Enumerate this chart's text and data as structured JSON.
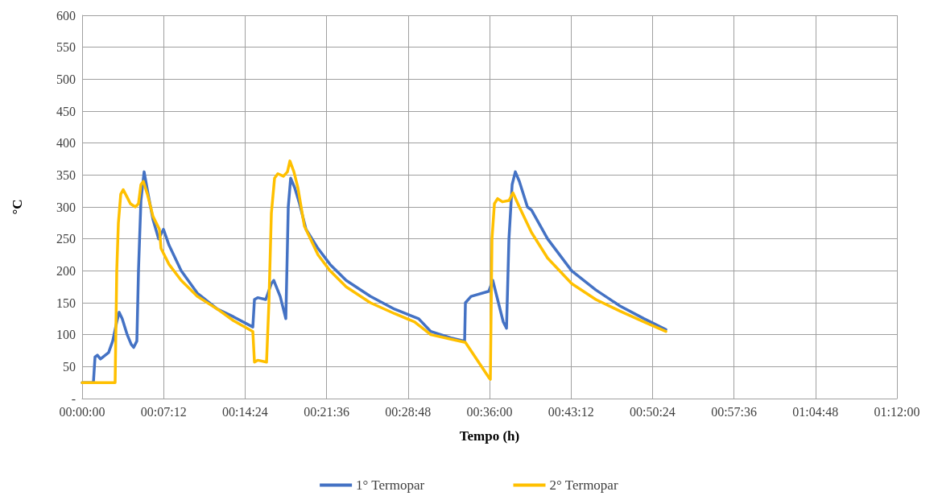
{
  "chart_data": {
    "type": "line",
    "xlabel": "Tempo (h)",
    "ylabel": "°C",
    "xlim": [
      0,
      1.2
    ],
    "xticks": [
      {
        "value": 0,
        "label": "00:00:00"
      },
      {
        "value": 0.12,
        "label": "00:07:12"
      },
      {
        "value": 0.24,
        "label": "00:14:24"
      },
      {
        "value": 0.36,
        "label": "00:21:36"
      },
      {
        "value": 0.48,
        "label": "00:28:48"
      },
      {
        "value": 0.6,
        "label": "00:36:00"
      },
      {
        "value": 0.72,
        "label": "00:43:12"
      },
      {
        "value": 0.84,
        "label": "00:50:24"
      },
      {
        "value": 0.96,
        "label": "00:57:36"
      },
      {
        "value": 1.08,
        "label": "01:04:48"
      },
      {
        "value": 1.2,
        "label": "01:12:00"
      }
    ],
    "ylim": [
      0,
      600
    ],
    "yticks": [
      {
        "value": 0,
        "label": "-"
      },
      50,
      100,
      150,
      200,
      250,
      300,
      350,
      400,
      450,
      500,
      550,
      600
    ],
    "grid": true,
    "legend": "bottom",
    "marker": "none",
    "line_style": "solid",
    "series": [
      {
        "name": "1° Termopar",
        "color": "#4472c4",
        "x": [
          0,
          0.0166,
          0.019,
          0.0225,
          0.027,
          0.039,
          0.045,
          0.051,
          0.0546,
          0.059,
          0.0664,
          0.0723,
          0.0759,
          0.0806,
          0.083,
          0.0866,
          0.0913,
          0.0972,
          0.1044,
          0.1127,
          0.1198,
          0.128,
          0.1459,
          0.1696,
          0.1992,
          0.2229,
          0.2514,
          0.2538,
          0.2585,
          0.2704,
          0.2787,
          0.2822,
          0.2917,
          0.3,
          0.3036,
          0.3071,
          0.3131,
          0.3202,
          0.3297,
          0.3474,
          0.3652,
          0.3889,
          0.4245,
          0.4601,
          0.4957,
          0.5135,
          0.5431,
          0.5633,
          0.5645,
          0.5728,
          0.5989,
          0.6048,
          0.6202,
          0.625,
          0.6286,
          0.6333,
          0.638,
          0.6439,
          0.6558,
          0.6618,
          0.6855,
          0.721,
          0.7566,
          0.7921,
          0.8277,
          0.8597
        ],
        "values": [
          25,
          25,
          65,
          68,
          62,
          72,
          90,
          120,
          135,
          125,
          100,
          85,
          80,
          90,
          200,
          310,
          355,
          320,
          280,
          250,
          265,
          240,
          200,
          165,
          140,
          128,
          112,
          155,
          158,
          155,
          180,
          185,
          160,
          125,
          300,
          345,
          330,
          305,
          265,
          235,
          210,
          185,
          160,
          140,
          125,
          105,
          95,
          90,
          150,
          160,
          168,
          185,
          120,
          110,
          250,
          335,
          355,
          340,
          300,
          295,
          250,
          200,
          170,
          145,
          125,
          108
        ]
      },
      {
        "name": "2° Termopar",
        "color": "#ffc000",
        "x": [
          0,
          0.0486,
          0.051,
          0.0534,
          0.0569,
          0.0605,
          0.0664,
          0.0711,
          0.0783,
          0.083,
          0.0866,
          0.0901,
          0.0961,
          0.1044,
          0.1138,
          0.1162,
          0.128,
          0.1459,
          0.1696,
          0.1992,
          0.2229,
          0.2514,
          0.2538,
          0.2585,
          0.2716,
          0.2751,
          0.2787,
          0.2834,
          0.2882,
          0.2965,
          0.3024,
          0.306,
          0.3119,
          0.3178,
          0.3273,
          0.3474,
          0.3652,
          0.3889,
          0.4245,
          0.4601,
          0.4897,
          0.5135,
          0.5431,
          0.5645,
          0.5989,
          0.6012,
          0.6036,
          0.6072,
          0.6119,
          0.619,
          0.6286,
          0.6345,
          0.6439,
          0.6618,
          0.6855,
          0.721,
          0.7566,
          0.7921,
          0.8277,
          0.8597
        ],
        "values": [
          25,
          25,
          200,
          275,
          320,
          327,
          315,
          305,
          300,
          305,
          335,
          340,
          320,
          285,
          265,
          235,
          210,
          185,
          160,
          140,
          122,
          105,
          57,
          60,
          57,
          150,
          290,
          345,
          352,
          348,
          355,
          372,
          355,
          330,
          270,
          225,
          200,
          175,
          150,
          133,
          120,
          100,
          93,
          88,
          33,
          30,
          250,
          305,
          313,
          308,
          310,
          322,
          300,
          260,
          220,
          180,
          155,
          137,
          120,
          105
        ]
      }
    ]
  }
}
